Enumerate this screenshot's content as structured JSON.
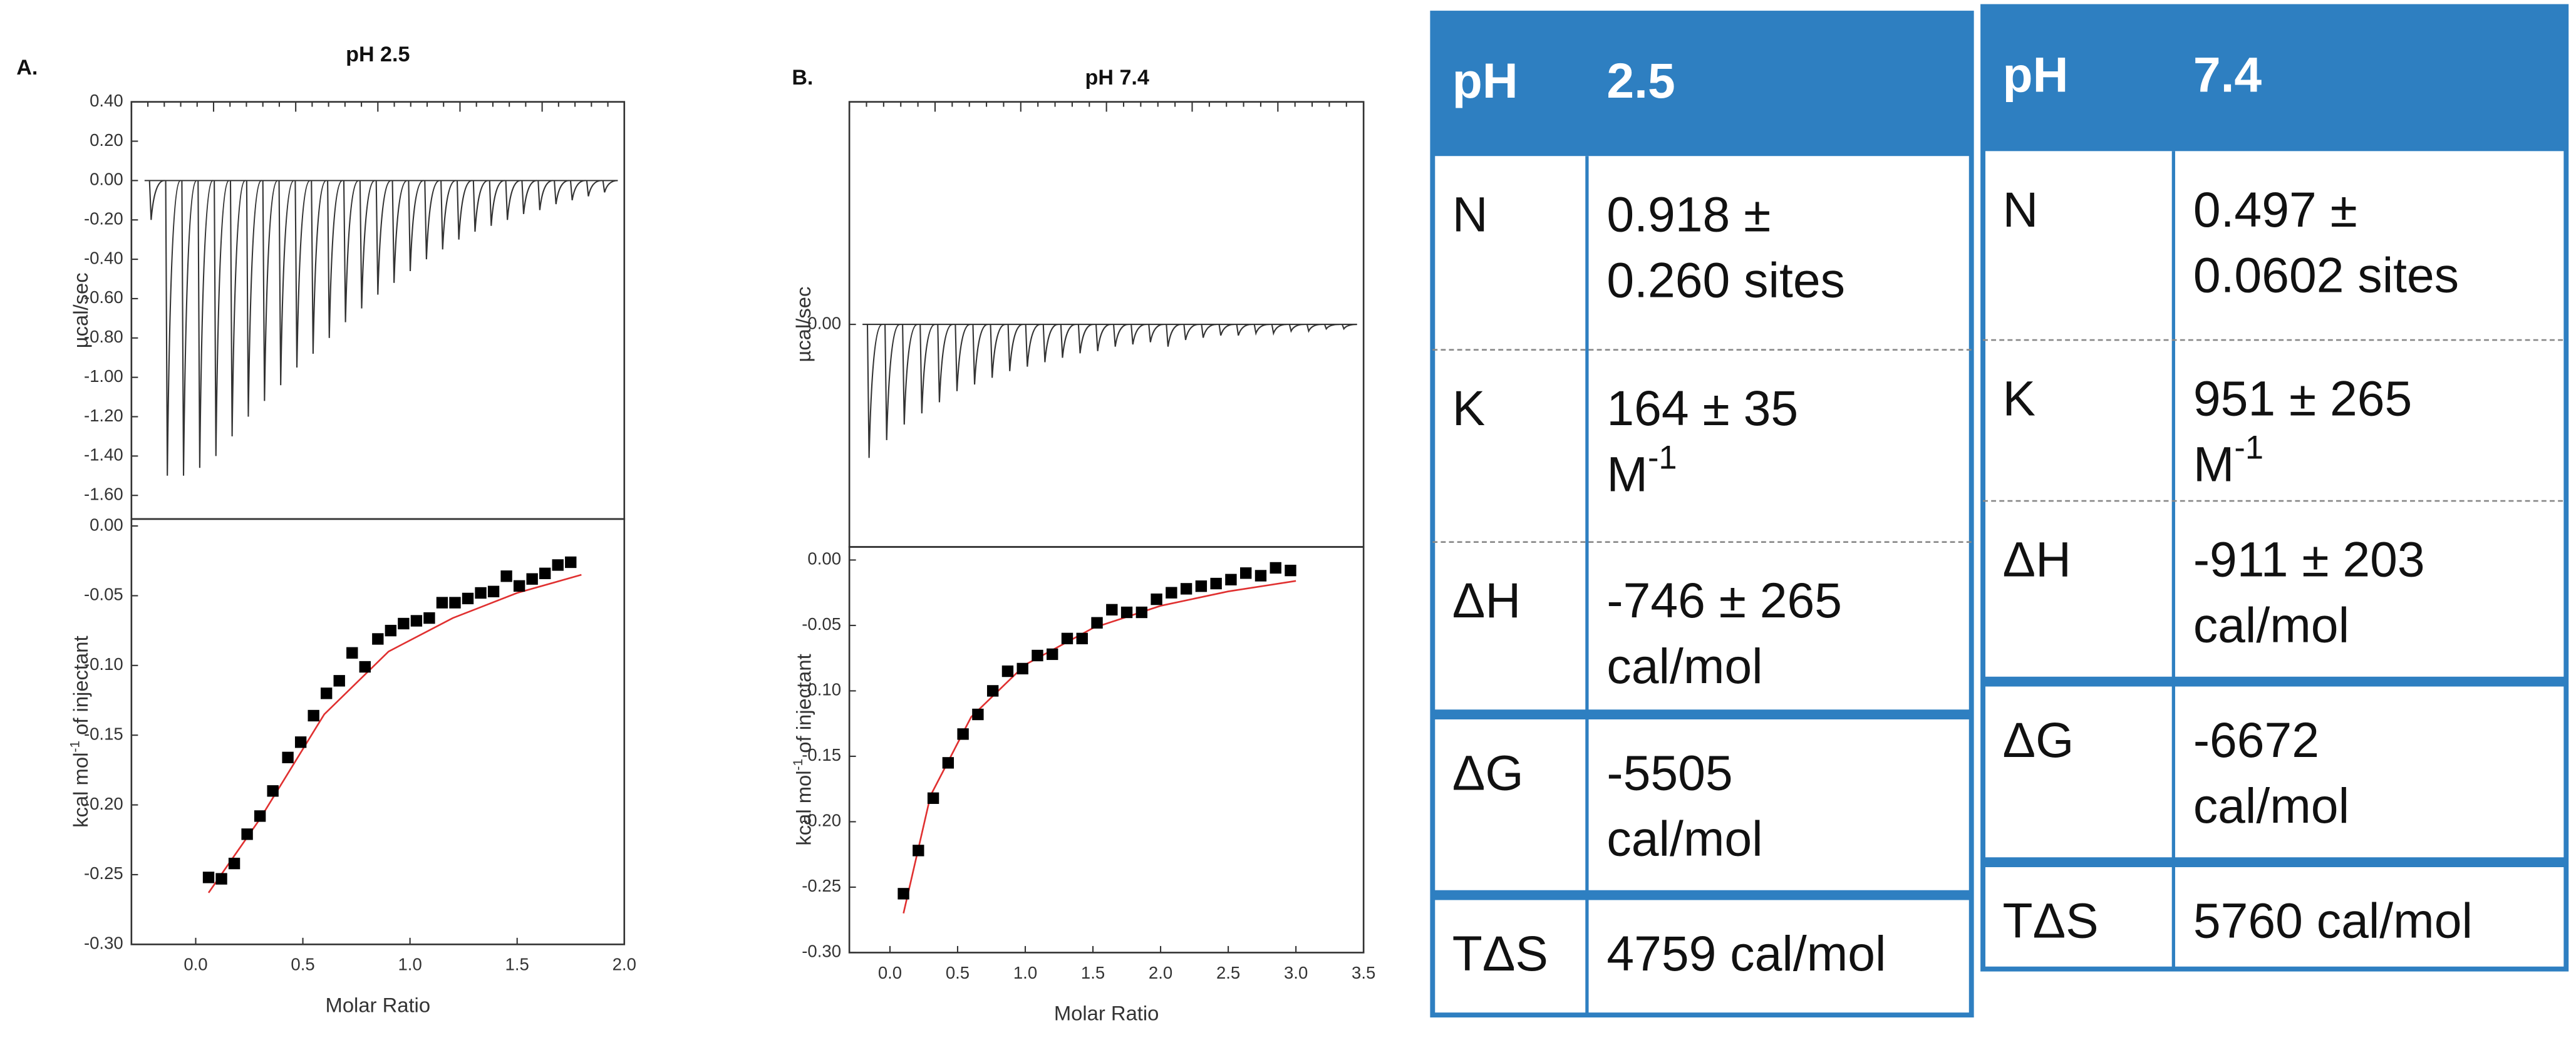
{
  "charts": [
    {
      "panel": "A.",
      "title": "pH 2.5",
      "thermogram": {
        "type": "line",
        "ylabel": "µcal/sec",
        "ylim": [
          -1.72,
          0.4
        ],
        "yticks": [
          {
            "value": 0.4,
            "label": "0.40"
          },
          {
            "value": 0.2,
            "label": "0.20"
          },
          {
            "value": 0,
            "label": "0.00"
          },
          {
            "value": -0.2,
            "label": "-0.20"
          },
          {
            "value": -0.4,
            "label": "-0.40"
          },
          {
            "value": -0.6,
            "label": "-0.60"
          },
          {
            "value": -0.8,
            "label": "-0.80"
          },
          {
            "value": -1.0,
            "label": "-1.00"
          },
          {
            "value": -1.2,
            "label": "-1.20"
          },
          {
            "value": -1.4,
            "label": "-1.40"
          },
          {
            "value": -1.6,
            "label": "-1.60"
          }
        ],
        "color": "#333333",
        "peaks": [
          -0.2,
          -1.5,
          -1.5,
          -1.46,
          -1.4,
          -1.3,
          -1.2,
          -1.12,
          -1.04,
          -0.95,
          -0.88,
          -0.8,
          -0.72,
          -0.65,
          -0.58,
          -0.52,
          -0.46,
          -0.4,
          -0.35,
          -0.3,
          -0.26,
          -0.23,
          -0.2,
          -0.17,
          -0.15,
          -0.12,
          -0.1,
          -0.08,
          -0.06
        ]
      },
      "isotherm": {
        "type": "scatter",
        "ylabel": [
          "kcal mol",
          "-1",
          " of injectant"
        ],
        "xlabel": "Molar Ratio",
        "xlim": [
          -0.3,
          2.0
        ],
        "xticks": [
          {
            "value": 0,
            "label": "0.0"
          },
          {
            "value": 0.5,
            "label": "0.5"
          },
          {
            "value": 1.0,
            "label": "1.0"
          },
          {
            "value": 1.5,
            "label": "1.5"
          },
          {
            "value": 2.0,
            "label": "2.0"
          }
        ],
        "ylim": [
          -0.3,
          0.005
        ],
        "yticks": [
          {
            "value": 0,
            "label": "0.00"
          },
          {
            "value": -0.05,
            "label": "-0.05"
          },
          {
            "value": -0.1,
            "label": "-0.10"
          },
          {
            "value": -0.15,
            "label": "-0.15"
          },
          {
            "value": -0.2,
            "label": "-0.20"
          },
          {
            "value": -0.25,
            "label": "-0.25"
          },
          {
            "value": -0.3,
            "label": "-0.30"
          }
        ],
        "color": "#000000",
        "x": [
          0.06,
          0.12,
          0.18,
          0.24,
          0.3,
          0.36,
          0.43,
          0.49,
          0.55,
          0.61,
          0.67,
          0.73,
          0.79,
          0.85,
          0.91,
          0.97,
          1.03,
          1.09,
          1.15,
          1.21,
          1.27,
          1.33,
          1.39,
          1.45,
          1.51,
          1.57,
          1.63,
          1.69,
          1.75
        ],
        "values": [
          -0.252,
          -0.253,
          -0.242,
          -0.221,
          -0.208,
          -0.19,
          -0.166,
          -0.155,
          -0.136,
          -0.12,
          -0.111,
          -0.091,
          -0.101,
          -0.081,
          -0.075,
          -0.07,
          -0.068,
          -0.066,
          -0.055,
          -0.055,
          -0.052,
          -0.048,
          -0.047,
          -0.036,
          -0.043,
          -0.038,
          -0.034,
          -0.028,
          -0.026
        ],
        "fit": {
          "color": "#e03030",
          "x": [
            0.06,
            0.3,
            0.6,
            0.9,
            1.2,
            1.5,
            1.8
          ],
          "values": [
            -0.263,
            -0.21,
            -0.135,
            -0.09,
            -0.066,
            -0.048,
            -0.035
          ]
        }
      }
    },
    {
      "panel": "B.",
      "title": "pH 7.4",
      "thermogram": {
        "type": "line",
        "ylabel": "µcal/sec",
        "ylim": [
          -1,
          1
        ],
        "yticks": [
          {
            "value": 0,
            "label": "0.00"
          }
        ],
        "color": "#333333",
        "peaks": [
          -0.6,
          -0.52,
          -0.45,
          -0.4,
          -0.35,
          -0.3,
          -0.27,
          -0.24,
          -0.21,
          -0.19,
          -0.17,
          -0.15,
          -0.13,
          -0.12,
          -0.1,
          -0.09,
          -0.08,
          -0.1,
          -0.07,
          -0.06,
          -0.05,
          -0.05,
          -0.04,
          -0.04,
          -0.03,
          -0.03,
          -0.02,
          -0.02
        ]
      },
      "isotherm": {
        "type": "scatter",
        "ylabel": [
          "kcal mol",
          "-1",
          " of injectant"
        ],
        "xlabel": "Molar Ratio",
        "xlim": [
          -0.3,
          3.5
        ],
        "xticks": [
          {
            "value": 0,
            "label": "0.0"
          },
          {
            "value": 0.5,
            "label": "0.5"
          },
          {
            "value": 1.0,
            "label": "1.0"
          },
          {
            "value": 1.5,
            "label": "1.5"
          },
          {
            "value": 2.0,
            "label": "2.0"
          },
          {
            "value": 2.5,
            "label": "2.5"
          },
          {
            "value": 3.0,
            "label": "3.0"
          },
          {
            "value": 3.5,
            "label": "3.5"
          }
        ],
        "ylim": [
          -0.3,
          0.01
        ],
        "yticks": [
          {
            "value": 0,
            "label": "0.00"
          },
          {
            "value": -0.05,
            "label": "-0.05"
          },
          {
            "value": -0.1,
            "label": "-0.10"
          },
          {
            "value": -0.15,
            "label": "-0.15"
          },
          {
            "value": -0.2,
            "label": "-0.20"
          },
          {
            "value": -0.25,
            "label": "-0.25"
          },
          {
            "value": -0.3,
            "label": "-0.30"
          }
        ],
        "color": "#000000",
        "x": [
          0.1,
          0.21,
          0.32,
          0.43,
          0.54,
          0.65,
          0.76,
          0.87,
          0.98,
          1.09,
          1.2,
          1.31,
          1.42,
          1.53,
          1.64,
          1.75,
          1.86,
          1.97,
          2.08,
          2.19,
          2.3,
          2.41,
          2.52,
          2.63,
          2.74,
          2.85,
          2.96
        ],
        "values": [
          -0.255,
          -0.222,
          -0.182,
          -0.155,
          -0.133,
          -0.118,
          -0.1,
          -0.085,
          -0.083,
          -0.073,
          -0.072,
          -0.06,
          -0.06,
          -0.048,
          -0.038,
          -0.04,
          -0.04,
          -0.03,
          -0.025,
          -0.022,
          -0.02,
          -0.018,
          -0.015,
          -0.01,
          -0.012,
          -0.006,
          -0.008
        ],
        "fit": {
          "color": "#e03030",
          "x": [
            0.1,
            0.3,
            0.6,
            1.0,
            1.5,
            2.0,
            2.5,
            3.0
          ],
          "values": [
            -0.27,
            -0.18,
            -0.12,
            -0.08,
            -0.052,
            -0.035,
            -0.024,
            -0.016
          ]
        }
      }
    }
  ],
  "tables": [
    {
      "header": [
        "pH",
        "2.5"
      ],
      "rows": [
        [
          "N",
          [
            "0.918 ±",
            "0.260 sites"
          ]
        ],
        [
          "K",
          [
            "164 ± 35",
            [
              "M",
              "-1"
            ]
          ]
        ],
        [
          "ΔH",
          [
            "-746 ± 265",
            "cal/mol"
          ]
        ],
        [
          "ΔG",
          [
            "-5505",
            "cal/mol"
          ]
        ],
        [
          "TΔS",
          [
            "4759 cal/mol"
          ]
        ]
      ]
    },
    {
      "header": [
        "pH",
        "7.4"
      ],
      "rows": [
        [
          "N",
          [
            "0.497 ±",
            "0.0602 sites"
          ]
        ],
        [
          "K",
          [
            "951 ± 265",
            [
              "M",
              "-1"
            ]
          ]
        ],
        [
          "ΔH",
          [
            "-911 ± 203",
            "cal/mol"
          ]
        ],
        [
          "ΔG",
          [
            "-6672",
            "cal/mol"
          ]
        ],
        [
          "TΔS",
          [
            "5760 cal/mol"
          ]
        ]
      ]
    }
  ]
}
